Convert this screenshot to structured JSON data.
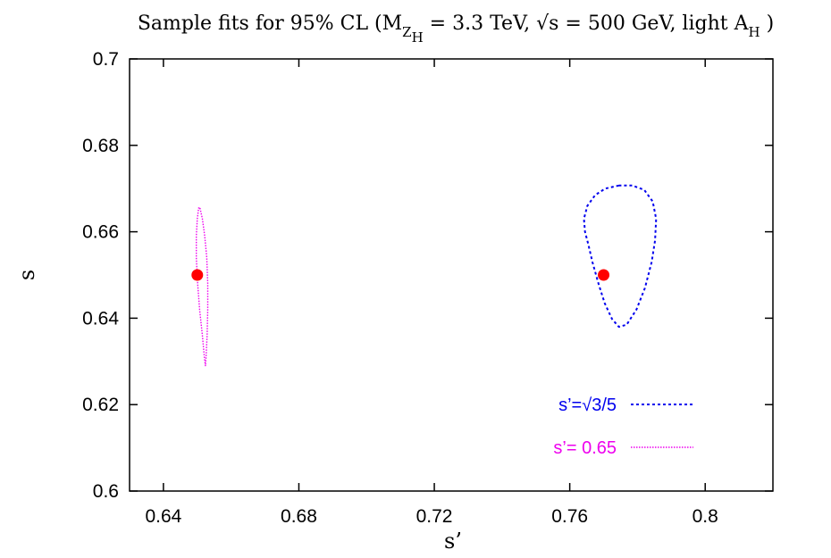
{
  "chart_data": {
    "type": "scatter",
    "title": {
      "prefix": "Sample fits for 95% CL (M",
      "sub1": "Z",
      "sub2": "H",
      "mid": " = 3.3 TeV, √s = 500 GeV, light A",
      "sub3": "H",
      "suffix": " )"
    },
    "xlabel": "s’",
    "ylabel": "s",
    "xlim": [
      0.63,
      0.82
    ],
    "ylim": [
      0.6,
      0.7
    ],
    "x_ticks": [
      0.64,
      0.68,
      0.72,
      0.76,
      0.8
    ],
    "x_tick_labels": [
      "0.64",
      "0.68",
      "0.72",
      "0.76",
      "0.8"
    ],
    "y_ticks": [
      0.6,
      0.62,
      0.64,
      0.66,
      0.68,
      0.7
    ],
    "y_tick_labels": [
      "0.6",
      "0.62",
      "0.64",
      "0.66",
      "0.68",
      "0.7"
    ],
    "grid": false,
    "legend_position": "bottom-right",
    "series": [
      {
        "name": "s’=√3/5",
        "color": "#0000ee",
        "style": "dotted",
        "contour": [
          [
            0.7745,
            0.6707
          ],
          [
            0.7705,
            0.67
          ],
          [
            0.7675,
            0.6685
          ],
          [
            0.7652,
            0.666
          ],
          [
            0.7642,
            0.663
          ],
          [
            0.7645,
            0.66
          ],
          [
            0.7655,
            0.657
          ],
          [
            0.7667,
            0.653
          ],
          [
            0.7685,
            0.648
          ],
          [
            0.7703,
            0.6435
          ],
          [
            0.7725,
            0.6398
          ],
          [
            0.7745,
            0.638
          ],
          [
            0.7768,
            0.6385
          ],
          [
            0.7797,
            0.642
          ],
          [
            0.7822,
            0.647
          ],
          [
            0.7842,
            0.653
          ],
          [
            0.7852,
            0.658
          ],
          [
            0.7855,
            0.663
          ],
          [
            0.7845,
            0.667
          ],
          [
            0.782,
            0.6697
          ],
          [
            0.7785,
            0.6707
          ],
          [
            0.7745,
            0.6707
          ]
        ],
        "best_fit": [
          0.77,
          0.65
        ]
      },
      {
        "name": "s’= 0.65",
        "color": "#ee00ee",
        "style": "dotted",
        "contour": [
          [
            0.6508,
            0.6655
          ],
          [
            0.6515,
            0.663
          ],
          [
            0.6522,
            0.659
          ],
          [
            0.6528,
            0.654
          ],
          [
            0.6531,
            0.648
          ],
          [
            0.6531,
            0.642
          ],
          [
            0.6529,
            0.636
          ],
          [
            0.6526,
            0.631
          ],
          [
            0.6524,
            0.629
          ],
          [
            0.6521,
            0.631
          ],
          [
            0.6515,
            0.636
          ],
          [
            0.6507,
            0.642
          ],
          [
            0.6501,
            0.648
          ],
          [
            0.6497,
            0.654
          ],
          [
            0.6497,
            0.659
          ],
          [
            0.65,
            0.663
          ],
          [
            0.6504,
            0.6655
          ],
          [
            0.6508,
            0.6655
          ]
        ],
        "best_fit": [
          0.65,
          0.65
        ]
      }
    ],
    "best_fit_color": "#ff0000"
  }
}
